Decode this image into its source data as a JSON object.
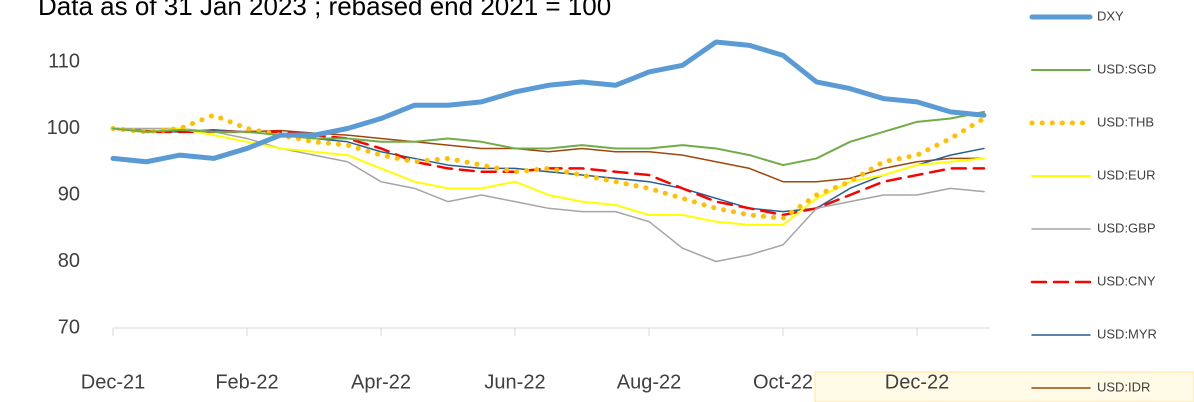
{
  "chart_data": {
    "type": "line",
    "title": "Data as of 31 Jan 2023 ; rebased end 2021 = 100",
    "categories": [
      "Dec-21",
      null,
      null,
      null,
      "Feb-22",
      null,
      null,
      null,
      "Apr-22",
      null,
      null,
      null,
      "Jun-22",
      null,
      null,
      null,
      "Aug-22",
      null,
      null,
      null,
      "Oct-22",
      null,
      null,
      null,
      "Dec-22",
      null,
      null
    ],
    "ylim": [
      70,
      115
    ],
    "yticks": [
      70,
      80,
      90,
      100,
      110
    ],
    "series": [
      {
        "name": "DXY",
        "color": "#5b9bd5",
        "width": 5,
        "dash": "solid",
        "values": [
          95.5,
          95,
          96,
          95.5,
          97,
          99,
          99,
          100,
          101.5,
          103.5,
          103.5,
          104,
          105.5,
          106.5,
          107,
          106.5,
          108.5,
          109.5,
          113,
          112.5,
          111,
          107,
          106,
          104.5,
          104,
          102.5,
          102
        ]
      },
      {
        "name": "USD:SGD",
        "color": "#70ad47",
        "width": 2,
        "dash": "solid",
        "values": [
          100,
          99.5,
          99.8,
          99.5,
          99.5,
          99,
          98.5,
          98.5,
          98,
          98,
          98.5,
          98,
          97,
          97,
          97.5,
          97,
          97,
          97.5,
          97,
          96,
          94.5,
          95.5,
          98,
          99.5,
          101,
          101.5,
          102.5
        ]
      },
      {
        "name": "USD:THB",
        "color": "#ffc000",
        "width": 5,
        "dash": "dotted",
        "values": [
          100,
          99.5,
          100,
          102,
          100,
          99,
          98,
          97.5,
          96,
          95,
          95.5,
          94.5,
          93.5,
          94,
          93,
          92,
          91,
          89.5,
          88,
          87,
          86.5,
          90,
          92,
          95,
          96,
          98.5,
          101.5
        ]
      },
      {
        "name": "USD:EUR",
        "color": "#ffff00",
        "width": 2,
        "dash": "solid",
        "values": [
          100,
          99.5,
          100,
          99,
          98,
          97,
          96.5,
          96,
          94,
          92,
          91,
          91,
          92,
          90,
          89,
          88.5,
          87,
          87,
          86,
          85.5,
          85.5,
          89.5,
          92,
          93,
          94.5,
          95,
          95.5
        ]
      },
      {
        "name": "USD:GBP",
        "color": "#a5a5a5",
        "width": 1.5,
        "dash": "solid",
        "values": [
          100,
          100,
          100,
          99.5,
          98.5,
          97,
          96,
          95,
          92,
          91,
          89,
          90,
          89,
          88,
          87.5,
          87.5,
          86,
          82,
          80,
          81,
          82.5,
          88,
          89,
          90,
          90,
          91,
          90.5
        ]
      },
      {
        "name": "USD:CNY",
        "color": "#ff0000",
        "width": 2.5,
        "dash": "dashed",
        "values": [
          100,
          99.5,
          99.5,
          99.5,
          99.5,
          99.5,
          99,
          98.5,
          97,
          95,
          94,
          93.5,
          93.5,
          94,
          94,
          93.5,
          93,
          91,
          89,
          88,
          87,
          88,
          90,
          92,
          93,
          94,
          94
        ]
      },
      {
        "name": "USD:MYR",
        "color": "#255e91",
        "width": 1.5,
        "dash": "solid",
        "values": [
          100,
          99.5,
          99.5,
          99.8,
          99.5,
          99,
          98.5,
          98,
          96.5,
          95.5,
          94.5,
          94,
          94,
          93.5,
          93,
          92.5,
          92,
          91,
          89.5,
          88,
          87.5,
          88,
          91,
          93,
          94.5,
          96,
          97
        ]
      },
      {
        "name": "USD:IDR",
        "color": "#9e480e",
        "width": 1.5,
        "dash": "solid",
        "values": [
          100,
          99.7,
          99.5,
          99.8,
          99.5,
          99.7,
          99.3,
          99,
          98.5,
          98,
          97.5,
          97,
          97,
          96.5,
          97,
          96.5,
          96.5,
          96,
          95,
          94,
          92,
          92,
          92.5,
          94,
          95,
          95.5,
          95.5
        ]
      }
    ]
  }
}
